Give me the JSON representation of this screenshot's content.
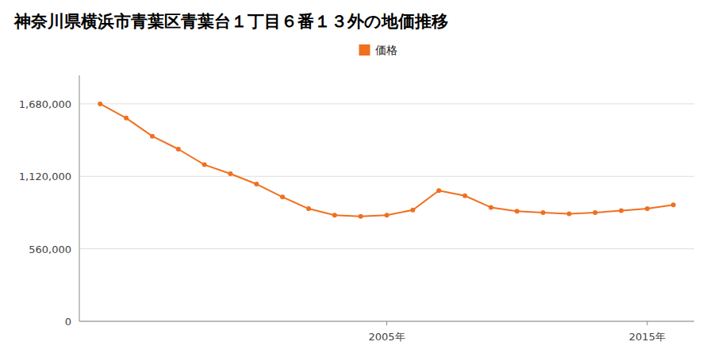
{
  "chart_data": {
    "type": "line",
    "title": "神奈川県横浜市青葉区青葉台１丁目６番１３外の地価推移",
    "x": [
      1994,
      1995,
      1996,
      1997,
      1998,
      1999,
      2000,
      2001,
      2002,
      2003,
      2004,
      2005,
      2006,
      2007,
      2008,
      2009,
      2010,
      2011,
      2012,
      2013,
      2014,
      2015,
      2016
    ],
    "series": [
      {
        "name": "価格",
        "color": "#f07020",
        "marker": "circle",
        "values": [
          1680000,
          1570000,
          1430000,
          1330000,
          1210000,
          1140000,
          1060000,
          960000,
          870000,
          820000,
          810000,
          820000,
          860000,
          1010000,
          970000,
          880000,
          850000,
          840000,
          830000,
          840000,
          855000,
          870000,
          900000
        ]
      }
    ],
    "xlim": [
      1993.2,
      2016.8
    ],
    "xticks": [
      {
        "value": 2005,
        "label": "2005年"
      },
      {
        "value": 2015,
        "label": "2015年"
      }
    ],
    "ylim": [
      0,
      1900000
    ],
    "yticks": [
      0,
      {
        "value": 560000,
        "label": "560,000"
      },
      {
        "value": 1120000,
        "label": "1,120,000"
      },
      {
        "value": 1680000,
        "label": "1,680,000"
      }
    ],
    "grid": true,
    "legend": "top"
  }
}
